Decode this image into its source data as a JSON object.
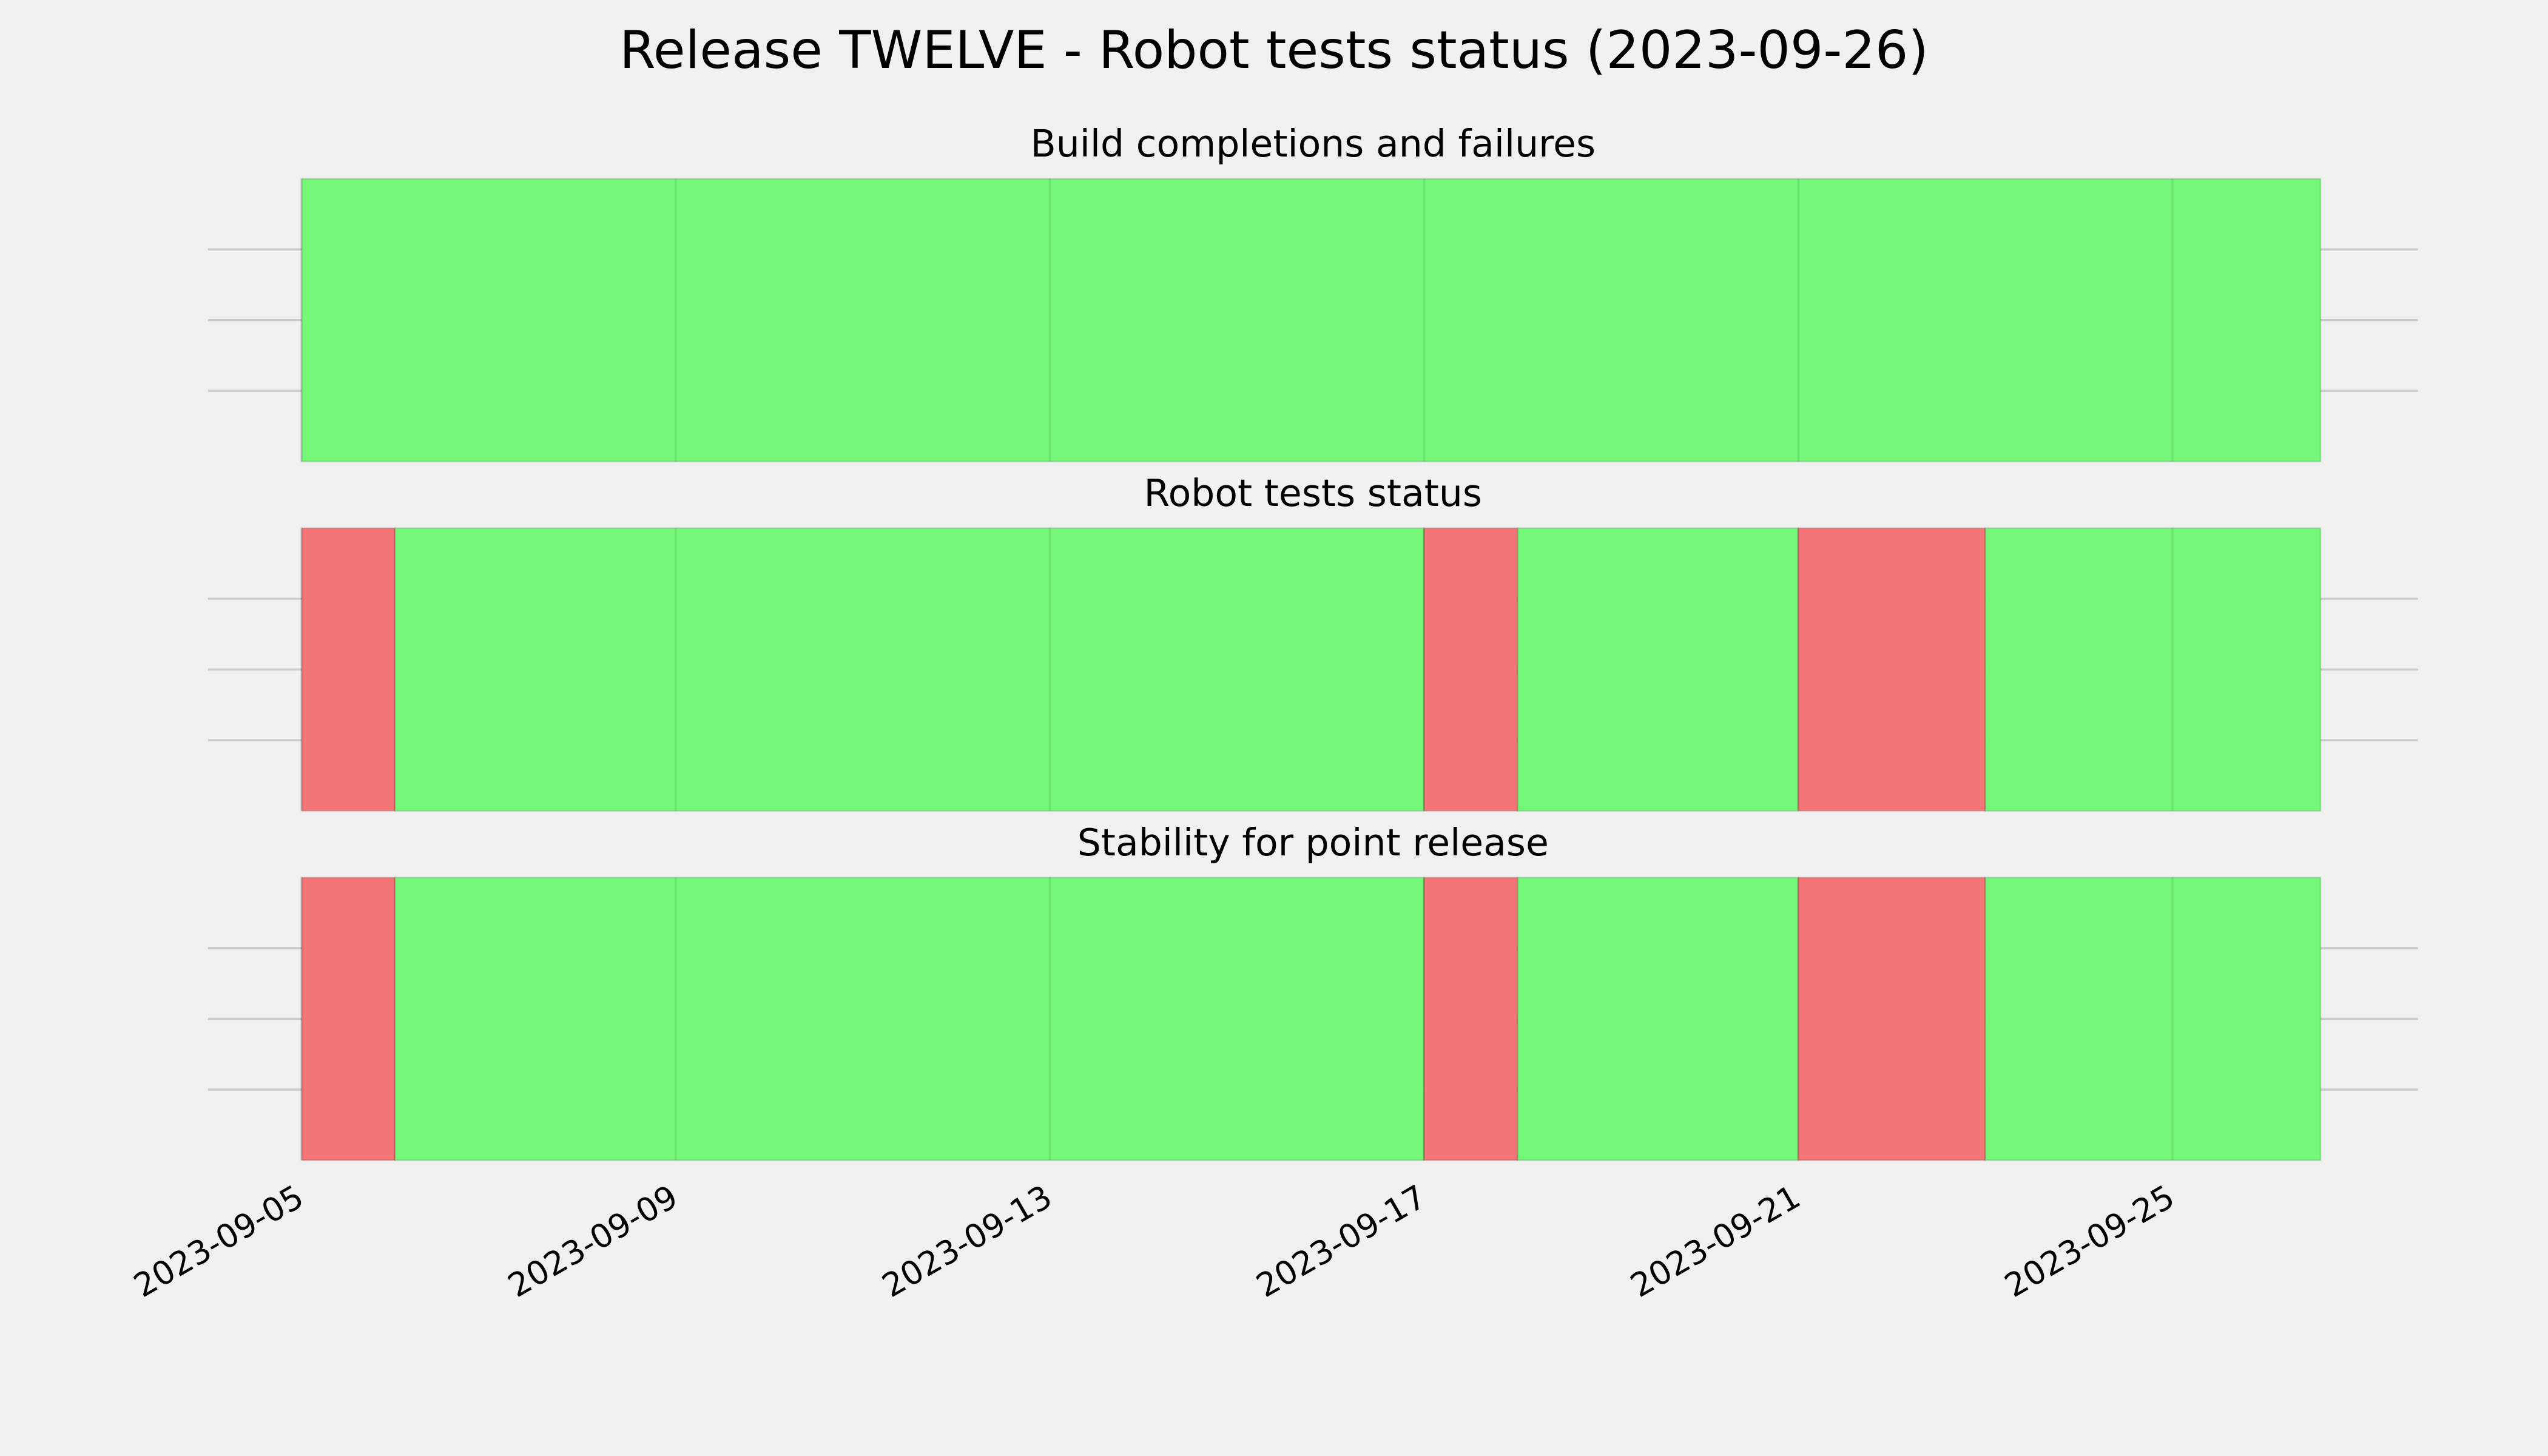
{
  "title": "Release TWELVE - Robot tests status (2023-09-26)",
  "chart_data": [
    {
      "type": "timeline",
      "title": "Build completions and failures",
      "spans": [
        {
          "start": "2023-09-05",
          "end": "2023-09-26T14:00",
          "color": "#75f779"
        }
      ],
      "ylim": [
        0,
        1
      ],
      "yticks": [
        0.25,
        0.5,
        0.75
      ],
      "grid": true
    },
    {
      "type": "timeline",
      "title": "Robot tests status",
      "spans": [
        {
          "start": "2023-09-05",
          "end": "2023-09-06",
          "color": "#f47575"
        },
        {
          "start": "2023-09-06",
          "end": "2023-09-17",
          "color": "#75f779"
        },
        {
          "start": "2023-09-17",
          "end": "2023-09-18",
          "color": "#f47575"
        },
        {
          "start": "2023-09-18",
          "end": "2023-09-21",
          "color": "#75f779"
        },
        {
          "start": "2023-09-21",
          "end": "2023-09-23",
          "color": "#f47575"
        },
        {
          "start": "2023-09-23",
          "end": "2023-09-26T14:00",
          "color": "#75f779"
        }
      ],
      "ylim": [
        0,
        1
      ],
      "yticks": [
        0.25,
        0.5,
        0.75
      ],
      "grid": true
    },
    {
      "type": "timeline",
      "title": "Stability for point release",
      "spans": [
        {
          "start": "2023-09-05",
          "end": "2023-09-06",
          "color": "#f47575"
        },
        {
          "start": "2023-09-06",
          "end": "2023-09-17",
          "color": "#75f779"
        },
        {
          "start": "2023-09-17",
          "end": "2023-09-18",
          "color": "#f47575"
        },
        {
          "start": "2023-09-18",
          "end": "2023-09-21",
          "color": "#75f779"
        },
        {
          "start": "2023-09-21",
          "end": "2023-09-23",
          "color": "#f47575"
        },
        {
          "start": "2023-09-23",
          "end": "2023-09-26T14:00",
          "color": "#75f779"
        }
      ],
      "ylim": [
        0,
        1
      ],
      "yticks": [
        0.25,
        0.5,
        0.75
      ],
      "grid": true,
      "xlim": [
        "2023-09-04",
        "2023-09-27T15:00"
      ],
      "xticks": [
        "2023-09-05",
        "2023-09-09",
        "2023-09-13",
        "2023-09-17",
        "2023-09-21",
        "2023-09-25"
      ]
    }
  ]
}
